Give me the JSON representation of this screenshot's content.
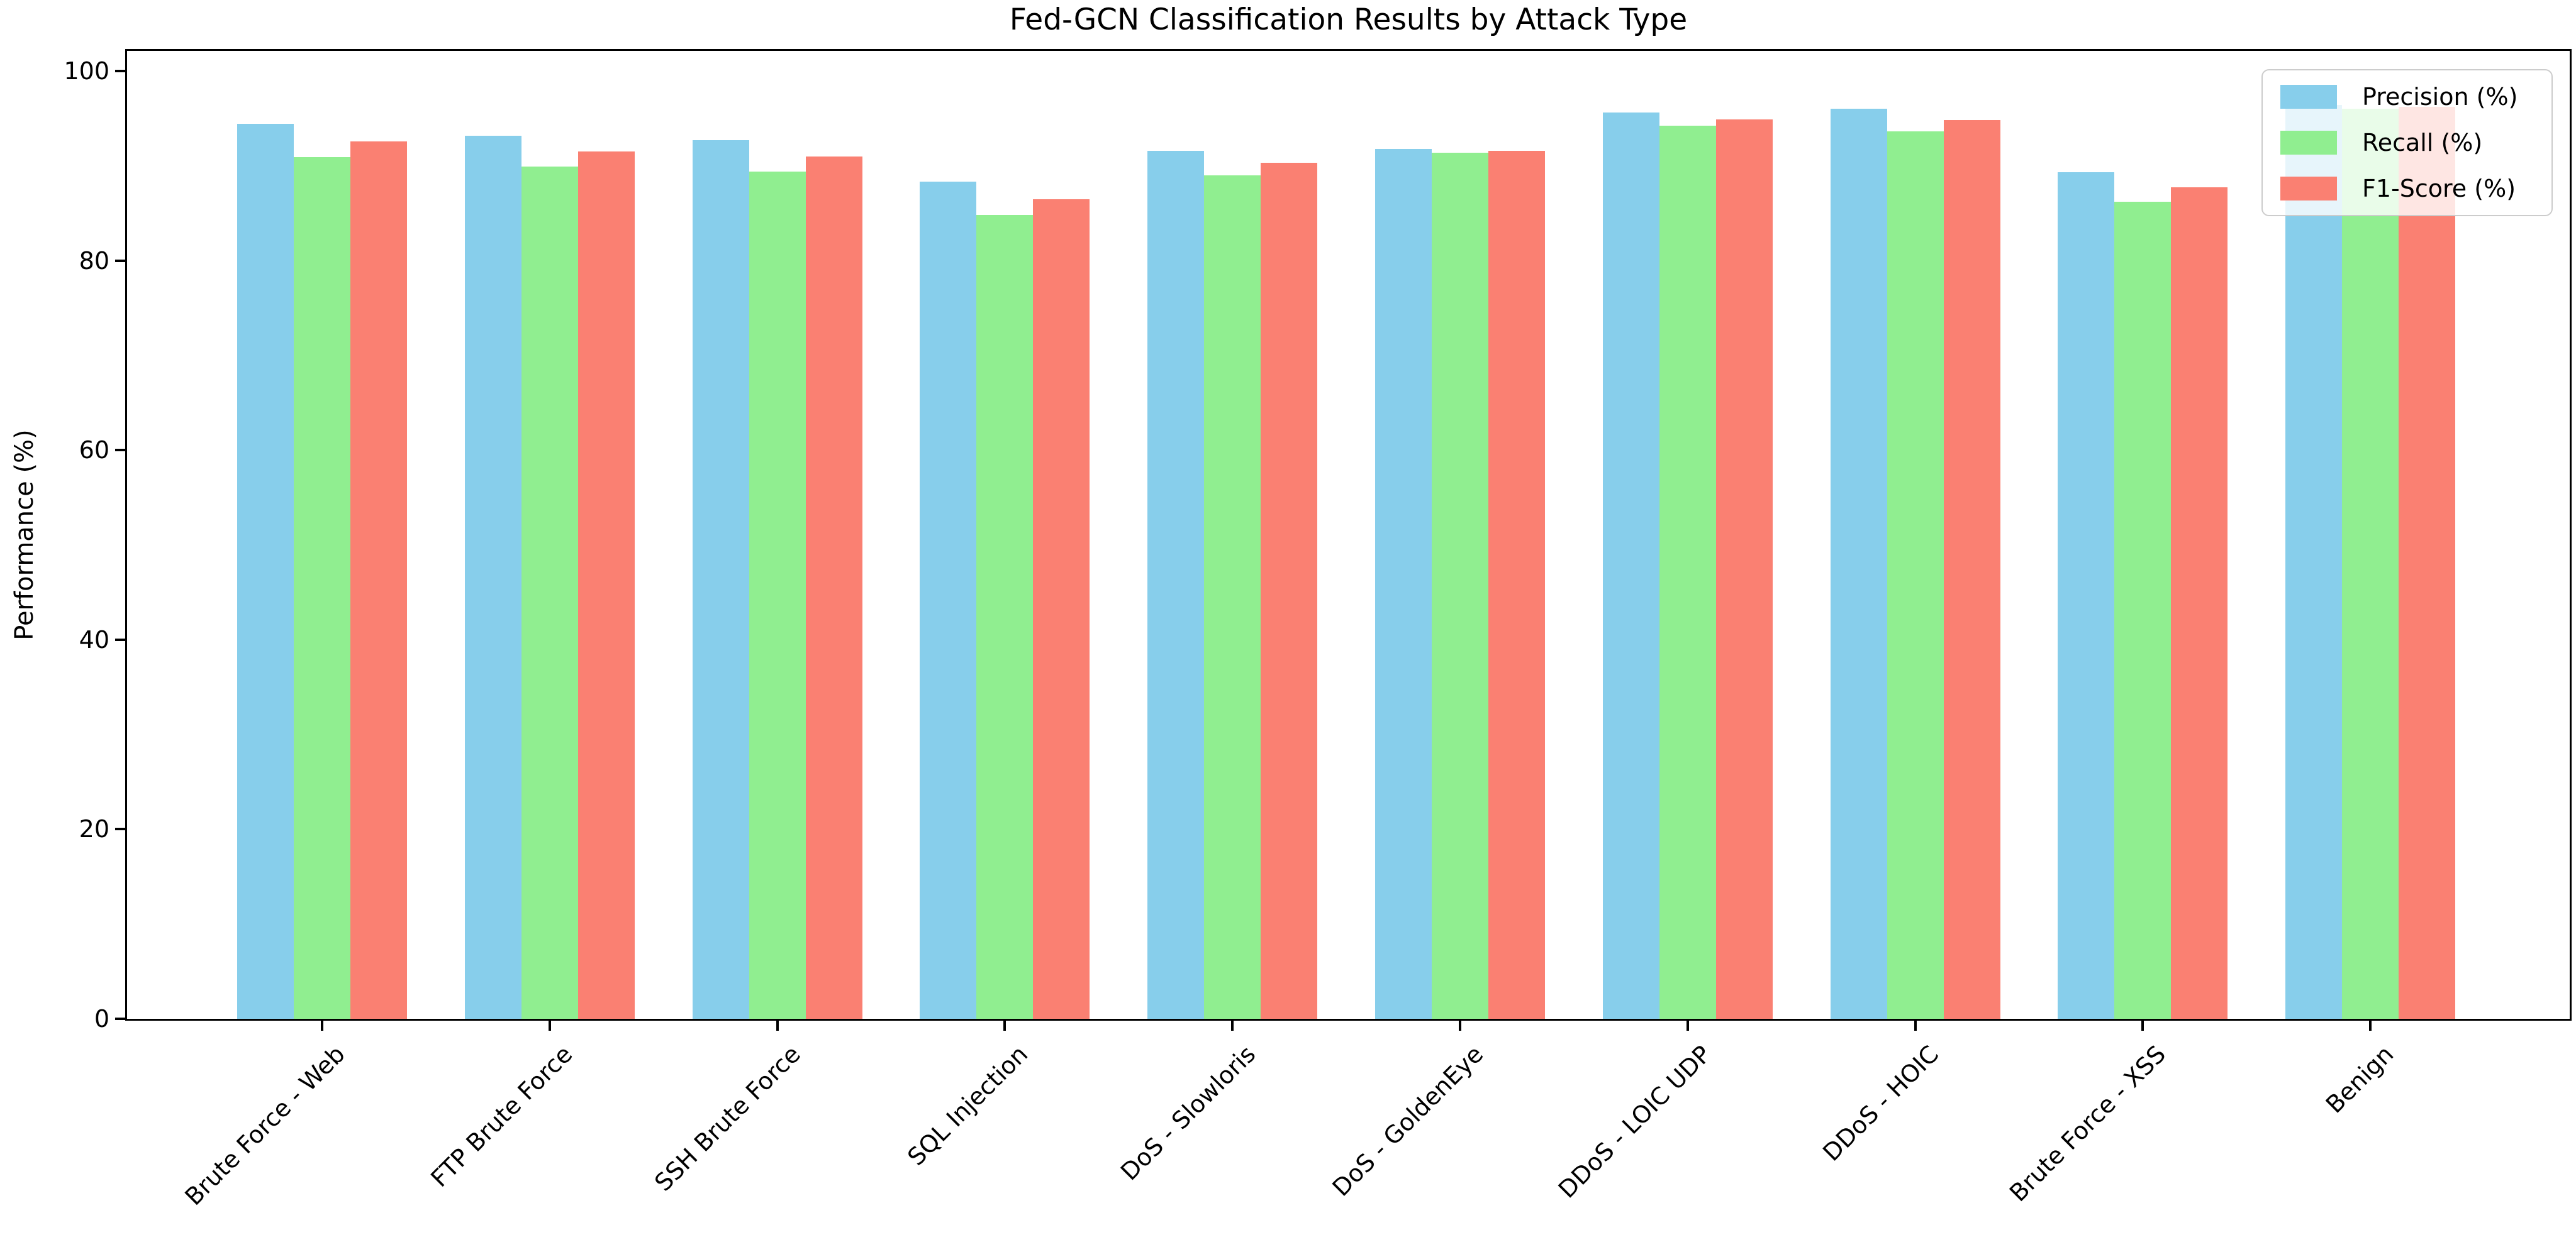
{
  "title": "Fed-GCN Classification Results by Attack Type",
  "ylabel": "Performance (%)",
  "legend": {
    "items": [
      "Precision (%)",
      "Recall (%)",
      "F1-Score (%)"
    ]
  },
  "chart_data": {
    "type": "bar",
    "title": "Fed-GCN Classification Results by Attack Type",
    "xlabel": "",
    "ylabel": "Performance (%)",
    "ylim": [
      0,
      102
    ],
    "yticks": [
      0,
      20,
      40,
      60,
      80,
      100
    ],
    "grid": false,
    "legend_position": "upper right",
    "xtick_rotation": 45,
    "categories": [
      "Brute Force - Web",
      "FTP Brute Force",
      "SSH Brute Force",
      "SQL Injection",
      "DoS - Slowloris",
      "DoS - GoldenEye",
      "DDoS - LOIC UDP",
      "DDoS - HOIC",
      "Brute Force - XSS",
      "Benign"
    ],
    "series": [
      {
        "name": "Precision (%)",
        "color": "#87CEEB",
        "values": [
          94.4,
          93.2,
          92.7,
          88.3,
          91.6,
          91.8,
          95.6,
          96.0,
          89.3,
          96.4
        ]
      },
      {
        "name": "Recall (%)",
        "color": "#90EE90",
        "values": [
          90.9,
          89.9,
          89.4,
          84.8,
          89.0,
          91.4,
          94.2,
          93.6,
          86.2,
          96.0
        ]
      },
      {
        "name": "F1-Score (%)",
        "color": "#FA8072",
        "values": [
          92.6,
          91.5,
          91.0,
          86.5,
          90.3,
          91.6,
          94.9,
          94.8,
          87.7,
          96.2
        ]
      }
    ]
  }
}
